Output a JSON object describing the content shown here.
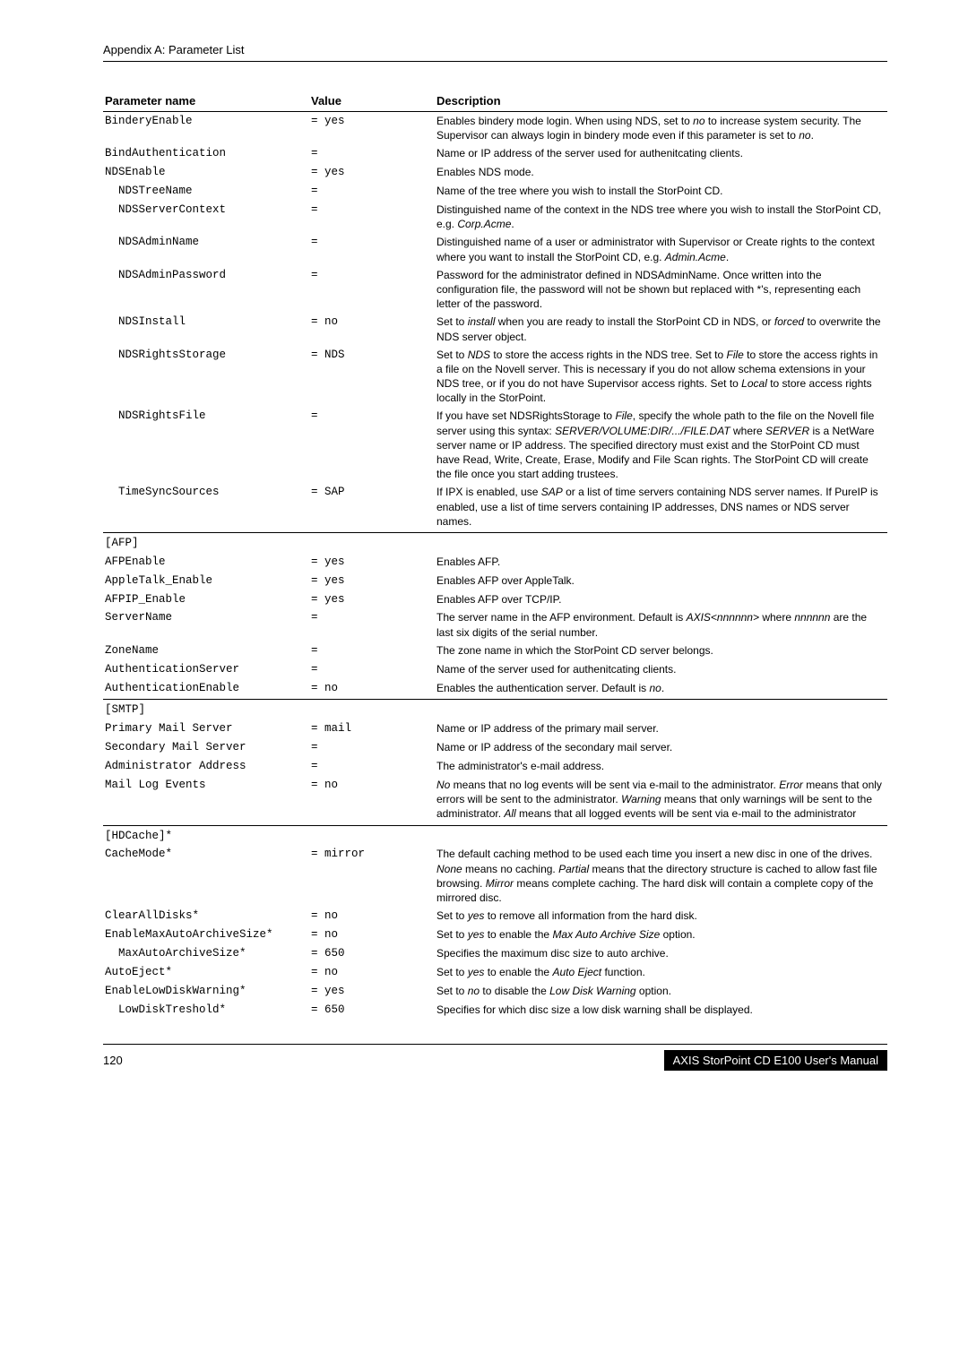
{
  "header": {
    "title": "Appendix A: Parameter List"
  },
  "table": {
    "columns": [
      "Parameter name",
      "Value",
      "Description"
    ],
    "rows": [
      {
        "name": "BinderyEnable",
        "value": "= yes",
        "desc": "Enables bindery mode login. When using NDS, set to <i>no</i> to increase system security. The Supervisor can always login in bindery mode even if this parameter is set to <i>no</i>.",
        "indent": 0
      },
      {
        "name": "BindAuthentication",
        "value": "=",
        "desc": "Name or IP address of the server used for authenitcating clients.",
        "indent": 0
      },
      {
        "name": "NDSEnable",
        "value": "= yes",
        "desc": "Enables NDS mode.",
        "indent": 0
      },
      {
        "name": "NDSTreeName",
        "value": "=",
        "desc": "Name of the tree where you wish to install the StorPoint CD.",
        "indent": 1
      },
      {
        "name": "NDSServerContext",
        "value": "=",
        "desc": "Distinguished name of the context in the NDS tree where you wish to install the StorPoint CD, e.g. <i>Corp.Acme</i>.",
        "indent": 1
      },
      {
        "name": "NDSAdminName",
        "value": "=",
        "desc": "Distinguished name of a user or administrator with Supervisor or Create rights to the context where you want to install the StorPoint CD, e.g. <i>Admin.Acme</i>.",
        "indent": 1
      },
      {
        "name": "NDSAdminPassword",
        "value": "=",
        "desc": "Password for the administrator defined in NDSAdminName. Once written into the configuration file, the password will not be shown but replaced with *'s, representing each letter of the password.",
        "indent": 1
      },
      {
        "name": "NDSInstall",
        "value": "= no",
        "desc": "Set to <i>install</i> when you are ready to install the StorPoint CD in NDS, or <i>forced</i> to overwrite the NDS server object.",
        "indent": 1
      },
      {
        "name": "NDSRightsStorage",
        "value": "= NDS",
        "desc": "Set to <i>NDS</i> to store the access rights in the NDS tree. Set to <i>File</i> to store the access rights in a file on the Novell server. This is necessary if you do not allow schema extensions in your NDS tree, or if you do not have Supervisor access rights. Set to <i>Local</i> to store access rights locally in the StorPoint.",
        "indent": 1
      },
      {
        "name": "NDSRightsFile",
        "value": "=",
        "desc": "If you have set NDSRightsStorage to <i>File</i>, specify the whole path to the file on the Novell file server using this syntax: <i>SERVER/VOLUME:DIR/.../FILE.DAT</i> where <i>SERVER</i> is a NetWare server name or IP address. The specified directory must exist and the StorPoint CD must have Read, Write, Create, Erase, Modify and File Scan rights. The StorPoint CD will create the file once you start adding trustees.",
        "indent": 1
      },
      {
        "name": "TimeSyncSources",
        "value": "= SAP",
        "desc": "If IPX is enabled, use <i>SAP</i> or a list of time servers containing NDS server names. If PureIP is enabled, use a list of time servers containing IP addresses, DNS names or NDS server names.",
        "indent": 1,
        "last": true
      },
      {
        "name": "[AFP]",
        "value": "",
        "desc": "",
        "indent": 0,
        "sectiontop": true
      },
      {
        "name": "AFPEnable",
        "value": "= yes",
        "desc": "Enables AFP.",
        "indent": 0
      },
      {
        "name": "AppleTalk_Enable",
        "value": "= yes",
        "desc": "Enables AFP over AppleTalk.",
        "indent": 0
      },
      {
        "name": "AFPIP_Enable",
        "value": "= yes",
        "desc": "Enables AFP over TCP/IP.",
        "indent": 0
      },
      {
        "name": "ServerName",
        "value": "=",
        "desc": "The server name in the AFP environment. Default is <i>AXIS&lt;nnnnnn&gt;</i> where <i>nnnnnn</i> are the last six digits of the serial number.",
        "indent": 0
      },
      {
        "name": "ZoneName",
        "value": "=",
        "desc": "The zone name in which the StorPoint CD server belongs.",
        "indent": 0
      },
      {
        "name": "AuthenticationServer",
        "value": "=",
        "desc": "Name of the server used for authenitcating clients.",
        "indent": 0
      },
      {
        "name": "AuthenticationEnable",
        "value": "= no",
        "desc": "Enables the authentication server. Default is <i>no</i>.",
        "indent": 0,
        "last": true
      },
      {
        "name": "[SMTP]",
        "value": "",
        "desc": "",
        "indent": 0,
        "sectiontop": true
      },
      {
        "name": "Primary Mail Server",
        "value": "= mail",
        "desc": "Name or IP address of the primary mail server.",
        "indent": 0
      },
      {
        "name": "Secondary Mail Server",
        "value": "=",
        "desc": "Name or IP address of the secondary mail server.",
        "indent": 0
      },
      {
        "name": "Administrator Address",
        "value": "=",
        "desc": "The administrator's e-mail address.",
        "indent": 0
      },
      {
        "name": "Mail Log Events",
        "value": "= no",
        "desc": "<i>No</i> means that no log events will be sent via e-mail to the administrator. <i>Error</i> means that only errors will be sent to the administrator. <i>Warning</i> means that only warnings will be sent to the administrator. <i>All</i> means that all logged events will be sent via e-mail to the administrator",
        "indent": 0,
        "last": true
      },
      {
        "name": "[HDCache]*",
        "value": "",
        "desc": "",
        "indent": 0,
        "sectiontop": true
      },
      {
        "name": "CacheMode*",
        "value": "= mirror",
        "desc": "The default caching method to be used each time you insert a new disc in one of the drives. <i>None</i> means no caching. <i>Partial</i> means that the directory structure is cached to allow fast file browsing. <i>Mirror</i> means complete caching. The hard disk will contain a complete copy of the mirrored disc.",
        "indent": 0
      },
      {
        "name": "ClearAllDisks*",
        "value": "= no",
        "desc": "Set to <i>yes</i> to remove all information from the hard disk.",
        "indent": 0
      },
      {
        "name": "EnableMaxAutoArchiveSize*",
        "value": "= no",
        "desc": "Set to <i>yes</i> to enable the <i>Max Auto Archive Size</i> option.",
        "indent": 0
      },
      {
        "name": "MaxAutoArchiveSize*",
        "value": "= 650",
        "desc": "Specifies the maximum disc size to auto archive.",
        "indent": 1
      },
      {
        "name": "AutoEject*",
        "value": "= no",
        "desc": "Set to <i>yes</i> to enable the <i>Auto Eject</i> function.",
        "indent": 0
      },
      {
        "name": "EnableLowDiskWarning*",
        "value": "= yes",
        "desc": "Set to <i>no</i> to disable the <i>Low Disk Warning</i> option.",
        "indent": 0
      },
      {
        "name": "LowDiskTreshold*",
        "value": "= 650",
        "desc": "Specifies for which disc size a low disk warning shall be displayed.",
        "indent": 1
      }
    ]
  },
  "footer": {
    "page": "120",
    "manual": "AXIS StorPoint CD E100 User's Manual"
  }
}
